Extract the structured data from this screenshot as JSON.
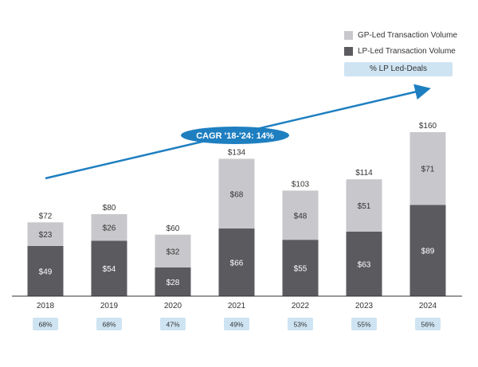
{
  "colors": {
    "gp": "#c8c8cc",
    "lp": "#5a5a5f",
    "pct_bg": "#cfe4f2",
    "cagr": "#1e7fc0",
    "axis": "#333333",
    "text": "#333333"
  },
  "legend": {
    "gp": "GP-Led Transaction Volume",
    "lp": "LP-Led Transaction Volume",
    "pct": "% LP Led-Deals"
  },
  "cagr_label": "CAGR '18-'24: 14%",
  "chart_data": {
    "type": "bar",
    "stacked": true,
    "title": "",
    "xlabel": "",
    "ylabel": "",
    "categories": [
      "2018",
      "2019",
      "2020",
      "2021",
      "2022",
      "2023",
      "2024"
    ],
    "series": [
      {
        "name": "LP-Led Transaction Volume",
        "values": [
          49,
          54,
          28,
          66,
          55,
          63,
          89
        ],
        "labels": [
          "$49",
          "$54",
          "$28",
          "$66",
          "$55",
          "$63",
          "$89"
        ]
      },
      {
        "name": "GP-Led Transaction Volume",
        "values": [
          23,
          26,
          32,
          68,
          48,
          51,
          71
        ],
        "labels": [
          "$23",
          "$26",
          "$32",
          "$68",
          "$48",
          "$51",
          "$71"
        ]
      }
    ],
    "totals": [
      72,
      80,
      60,
      134,
      103,
      114,
      160
    ],
    "total_labels": [
      "$72",
      "$80",
      "$60",
      "$134",
      "$103",
      "$114",
      "$160"
    ],
    "pct_lp_led": [
      "68%",
      "68%",
      "47%",
      "49%",
      "53%",
      "55%",
      "56%"
    ],
    "ylim": [
      0,
      170
    ],
    "grid": false,
    "legend_position": "top-right"
  }
}
